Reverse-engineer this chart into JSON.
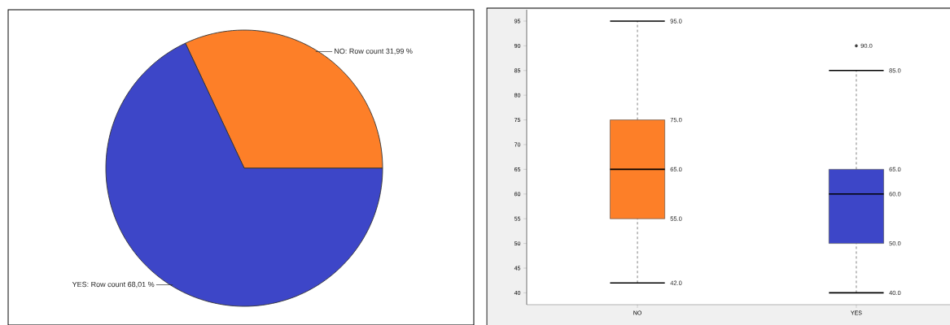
{
  "chart_data": [
    {
      "type": "pie",
      "categories": [
        "NO: Row count 31,99 %",
        "YES: Row count 68,01 %"
      ],
      "values": [
        31.99,
        68.01
      ],
      "colors": [
        "#fd7f28",
        "#3d46c8"
      ]
    },
    {
      "type": "box",
      "categories": [
        "NO",
        "YES"
      ],
      "colors": [
        "#fd7f28",
        "#3d46c8"
      ],
      "boxes": [
        {
          "low": 42,
          "q1": 55,
          "median": 65,
          "q3": 75,
          "high": 95
        },
        {
          "low": 40,
          "q1": 50,
          "median": 60,
          "q3": 65,
          "high": 85,
          "outliers": [
            90
          ]
        }
      ],
      "ylim": [
        37.6,
        97.3
      ],
      "yticks": [
        40,
        45,
        50,
        55,
        60,
        65,
        70,
        75,
        80,
        85,
        90,
        95
      ],
      "annotations": [
        "95.0",
        "75.0",
        "65.0",
        "55.0",
        "42.0",
        "90.0",
        "85.0",
        "65.0",
        "60.0",
        "50.0",
        "40.0"
      ]
    }
  ]
}
